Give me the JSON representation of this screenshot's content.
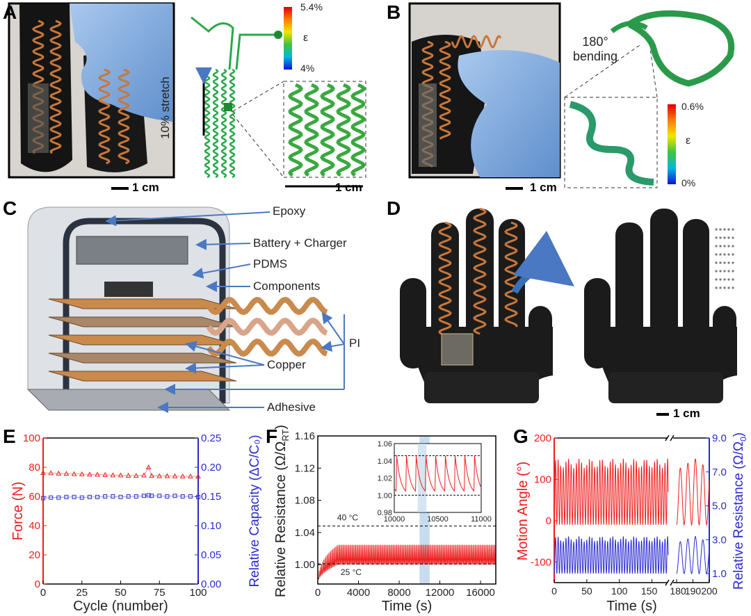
{
  "panels": {
    "A": {
      "label": "A",
      "scale_photo": "1 cm",
      "stretch_label": "10% stretch",
      "scale_inset": "1 cm",
      "colorbar": {
        "max": "5.4%",
        "symbol": "ε",
        "min": "4%"
      }
    },
    "B": {
      "label": "B",
      "bending_line1": "180°",
      "bending_line2": "bending",
      "scale_photo": "1 cm",
      "colorbar": {
        "max": "0.6%",
        "symbol": "ε",
        "min": "0%"
      }
    },
    "C": {
      "label": "C",
      "callouts": {
        "epoxy": "Epoxy",
        "battery": "Battery + Charger",
        "pdms": "PDMS",
        "components": "Components",
        "pi": "PI",
        "copper": "Copper",
        "adhesive": "Adhesive"
      }
    },
    "D": {
      "label": "D",
      "scale": "1 cm"
    },
    "E": {
      "label": "E"
    },
    "F": {
      "label": "F"
    },
    "G": {
      "label": "G"
    }
  },
  "colors": {
    "red": "#ee1c1c",
    "blue": "#2a2ad0",
    "highlight": "#b9d3ea",
    "callout_blue": "#4a78c2",
    "copper": "#c8773a"
  },
  "chart_data": [
    {
      "id": "E",
      "type": "scatter",
      "xlabel": "Cycle (number)",
      "ylabel_left": "Force (N)",
      "ylabel_right": "Relative Capacity (ΔC/C₀)",
      "xlim": [
        0,
        100
      ],
      "ylim_left": [
        0,
        100
      ],
      "ylim_right": [
        0,
        0.25
      ],
      "xticks": [
        0,
        25,
        50,
        75,
        100
      ],
      "yticks_left": [
        0,
        20,
        40,
        60,
        80,
        100
      ],
      "yticks_right": [
        "0.00",
        "0.05",
        "0.10",
        "0.15",
        "0.20",
        "0.25"
      ],
      "x": [
        0,
        5,
        10,
        15,
        20,
        25,
        30,
        35,
        40,
        45,
        50,
        55,
        60,
        65,
        68,
        70,
        75,
        80,
        85,
        90,
        95,
        100
      ],
      "series": [
        {
          "axis": "left",
          "color": "#ee1c1c",
          "marker": "open-triangle",
          "values": [
            76.2,
            76.0,
            75.8,
            75.6,
            75.4,
            75.3,
            75.1,
            75.0,
            74.8,
            74.6,
            74.5,
            74.3,
            74.2,
            74.5,
            80.0,
            74.2,
            74.0,
            74.0,
            73.9,
            73.8,
            73.8,
            73.7
          ]
        },
        {
          "axis": "right",
          "color": "#2a2ad0",
          "marker": "open-square",
          "values": [
            0.147,
            0.148,
            0.148,
            0.149,
            0.149,
            0.148,
            0.149,
            0.149,
            0.15,
            0.15,
            0.149,
            0.15,
            0.15,
            0.151,
            0.152,
            0.151,
            0.151,
            0.15,
            0.151,
            0.15,
            0.15,
            0.149
          ]
        }
      ],
      "grid": false
    },
    {
      "id": "F",
      "type": "line",
      "xlabel": "Time (s)",
      "ylabel_main": "Relative Resistance (Ω/Ω",
      "ylabel_sub": "RT",
      "ylabel_end": ")",
      "xlim": [
        0,
        17500
      ],
      "ylim": [
        0.976,
        1.16
      ],
      "xticks": [
        0,
        4000,
        8000,
        12000,
        16000
      ],
      "yticks": [
        "1.00",
        "1.04",
        "1.08",
        "1.12",
        "1.16"
      ],
      "series": [
        {
          "color": "#ee1c1c",
          "start": 0.977,
          "trough": 1.0,
          "peak": 1.046,
          "period_s": 112,
          "warmup_s": 2000
        }
      ],
      "reference_lines": [
        {
          "y": 1.048,
          "label": "40 °C"
        },
        {
          "y": 1.001,
          "label": "25 °C"
        }
      ],
      "highlight_x": [
        10000,
        11000
      ],
      "inset": {
        "xlim": [
          10000,
          11000
        ],
        "ylim": [
          0.98,
          1.06
        ],
        "xticks": [
          10000,
          10500,
          11000
        ],
        "yticks": [
          "0.98",
          "1.00",
          "1.02",
          "1.04",
          "1.06"
        ],
        "first_peak": 10140,
        "period_s": 112,
        "peak": 1.046,
        "trough": 1.0,
        "reference_lines": [
          1.046,
          1.0
        ]
      },
      "grid": false
    },
    {
      "id": "G",
      "type": "line",
      "xlabel": "Time (s)",
      "ylabel_left": "Motion Angle (°)",
      "ylabel_right_main": "Relative Resistance (Ω/Ω",
      "ylabel_right_sub": "0",
      "ylabel_right_end": ")",
      "x_segments": [
        [
          0,
          175
        ],
        [
          180,
          200
        ]
      ],
      "axis_break": true,
      "xticks": [
        0,
        50,
        100,
        150,
        180,
        190,
        200
      ],
      "ylim_left": [
        -150,
        200
      ],
      "ylim_right": [
        0.47,
        9.0
      ],
      "yticks_left": [
        -100,
        0,
        100,
        200
      ],
      "yticks_right": [
        "1.0",
        "3.0",
        "5.0",
        "7.0",
        "9.0"
      ],
      "series": [
        {
          "axis": "left",
          "color": "#ee1c1c",
          "min": -10,
          "max": 150,
          "period_s": [
            4.0,
            4.6
          ]
        },
        {
          "axis": "right",
          "color": "#2a2ad0",
          "min": 1.0,
          "max": 3.2,
          "period_s": [
            4.0,
            4.6
          ]
        }
      ],
      "grid": false
    }
  ]
}
